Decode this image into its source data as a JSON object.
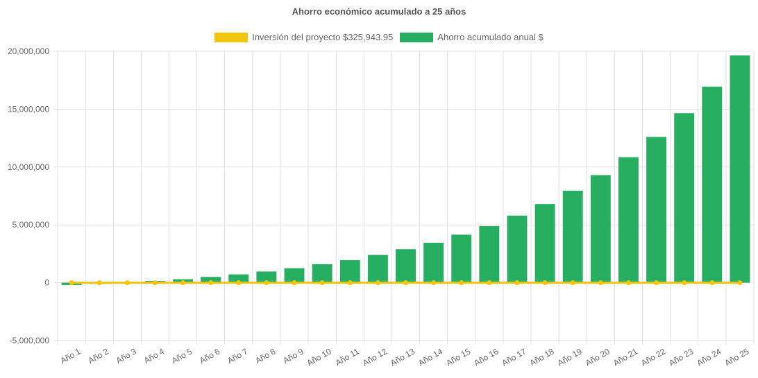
{
  "chart_data": {
    "type": "bar",
    "title": "Ahorro económico acumulado a 25 años",
    "legend_position": "top",
    "grid": true,
    "ylim": [
      -5000000,
      20000000
    ],
    "y_ticks": [
      "20,000,000",
      "15,000,000",
      "10,000,000",
      "5,000,000",
      "0",
      "-5,000,000"
    ],
    "y_tick_values": [
      20000000,
      15000000,
      10000000,
      5000000,
      0,
      -5000000
    ],
    "categories": [
      "Año 1",
      "Año 2",
      "Año 3",
      "Año 4",
      "Año 5",
      "Año 6",
      "Año 7",
      "Año 8",
      "Año 9",
      "Año 10",
      "Año 11",
      "Año 12",
      "Año 13",
      "Año 14",
      "Año 15",
      "Año 16",
      "Año 17",
      "Año 18",
      "Año 19",
      "Año 20",
      "Año 21",
      "Año 22",
      "Año 23",
      "Año 24",
      "Año 25"
    ],
    "series": [
      {
        "name": "Inversión del proyecto $325,943.95",
        "type": "line",
        "color": "#f1c40f",
        "values": [
          0,
          0,
          0,
          0,
          0,
          0,
          0,
          0,
          0,
          0,
          0,
          0,
          0,
          0,
          0,
          0,
          0,
          0,
          0,
          0,
          0,
          0,
          0,
          0,
          0
        ]
      },
      {
        "name": "Ahorro acumulado anual $",
        "type": "bar",
        "color": "#27ae60",
        "values": [
          -200000,
          -100000,
          20000,
          150000,
          300000,
          500000,
          720000,
          970000,
          1250000,
          1600000,
          1950000,
          2400000,
          2900000,
          3450000,
          4150000,
          4900000,
          5800000,
          6800000,
          7950000,
          9300000,
          10850000,
          12600000,
          14650000,
          16950000,
          19650000
        ]
      }
    ]
  }
}
